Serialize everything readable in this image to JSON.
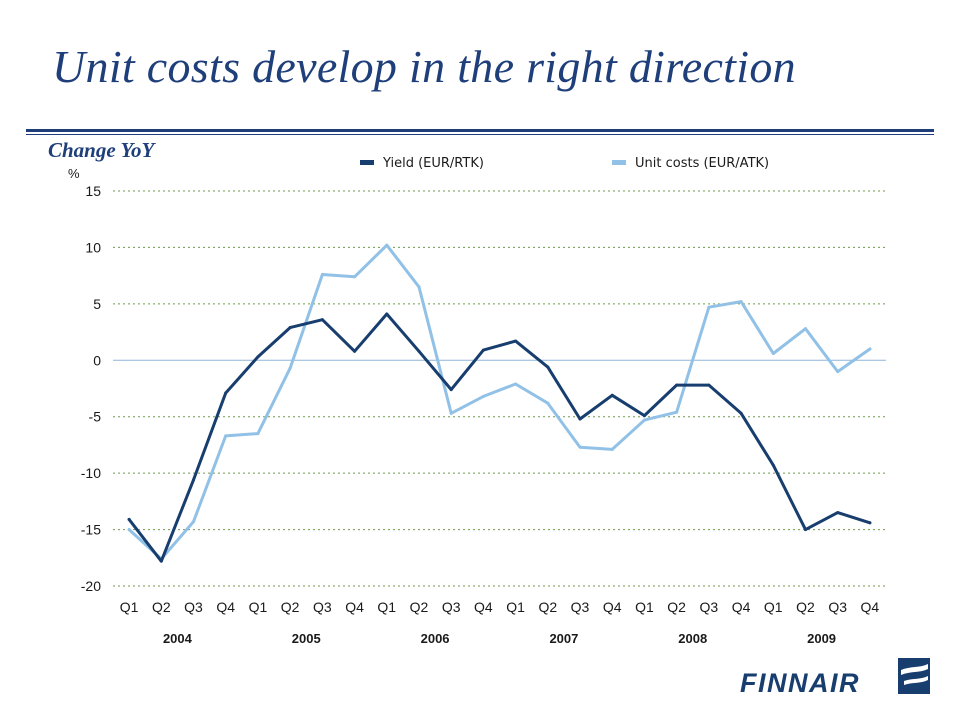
{
  "slide": {
    "title": "Unit costs develop in the right direction",
    "subtitle": "Change YoY"
  },
  "chart_data": {
    "type": "line",
    "ylabel": "%",
    "ylim": [
      -20,
      15
    ],
    "yticks": [
      15,
      10,
      5,
      0,
      -5,
      -10,
      -15,
      -20
    ],
    "grid": "horizontal dashed",
    "legend": "top",
    "categories": [
      "Q1",
      "Q2",
      "Q3",
      "Q4",
      "Q1",
      "Q2",
      "Q3",
      "Q4",
      "Q1",
      "Q2",
      "Q3",
      "Q4",
      "Q1",
      "Q2",
      "Q3",
      "Q4",
      "Q1",
      "Q2",
      "Q3",
      "Q4",
      "Q1",
      "Q2",
      "Q3",
      "Q4"
    ],
    "years": [
      "2004",
      "2005",
      "2006",
      "2007",
      "2008",
      "2009"
    ],
    "series": [
      {
        "name": "Yield (EUR/RTK)",
        "color": "#173e6e",
        "values": [
          -14.1,
          -17.8,
          -10.6,
          -2.9,
          0.3,
          2.9,
          3.6,
          0.8,
          4.1,
          0.8,
          -2.6,
          0.9,
          1.7,
          -0.6,
          -5.2,
          -3.1,
          -4.9,
          -2.2,
          -2.2,
          -4.7,
          -9.3,
          -15.0,
          -13.5,
          -14.4
        ]
      },
      {
        "name": "Unit costs (EUR/ATK)",
        "color": "#91c1e6",
        "values": [
          -15.0,
          -17.6,
          -14.3,
          -6.7,
          -6.5,
          -0.7,
          7.6,
          7.4,
          10.2,
          6.5,
          -4.7,
          -3.2,
          -2.1,
          -3.8,
          -7.7,
          -7.9,
          -5.3,
          -4.6,
          4.7,
          5.2,
          0.6,
          2.8,
          -1.0,
          1.0
        ]
      }
    ]
  },
  "brand": {
    "logo_text": "FINNAIR",
    "logo_icon": "finnair-flag-icon",
    "color": "#173e6e"
  }
}
